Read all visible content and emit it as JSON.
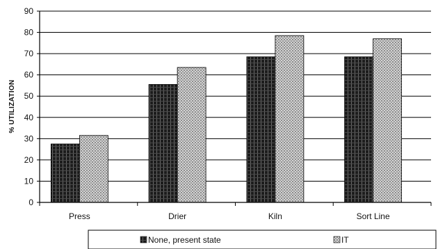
{
  "chart_data": {
    "type": "bar",
    "categories": [
      "Press",
      "Drier",
      "Kiln",
      "Sort Line"
    ],
    "series": [
      {
        "name": "None, present state",
        "values": [
          27.5,
          55.5,
          68.5,
          68.5
        ],
        "color": "#1a1a1a"
      },
      {
        "name": "IT",
        "values": [
          31.5,
          63.5,
          78.5,
          77
        ],
        "color": "#bdbdbd"
      }
    ],
    "ylabel": "% UTILIZATION",
    "xlabel": "",
    "ylim": [
      0,
      90
    ],
    "yticks": [
      0,
      10,
      20,
      30,
      40,
      50,
      60,
      70,
      80,
      90
    ],
    "grid": true,
    "legend": "bottom"
  }
}
